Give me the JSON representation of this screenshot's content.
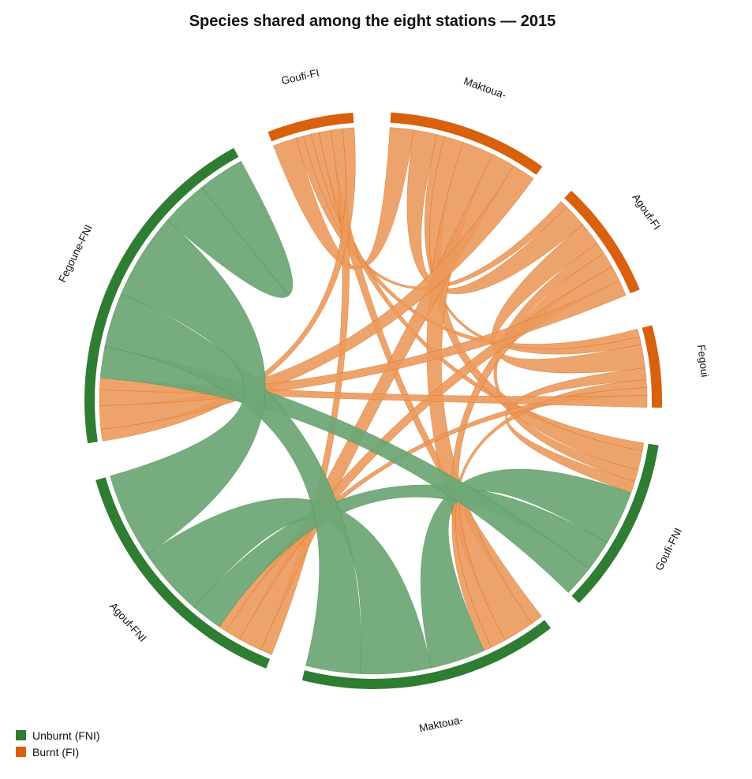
{
  "chart_data": {
    "type": "chord",
    "title": "Species shared among the eight stations — 2015",
    "sectors": [
      {
        "name": "Maktoua-FI",
        "label": "Maktoua-",
        "group": "Burnt (FI)"
      },
      {
        "name": "Agouf-FI",
        "label": "Agouf-FI",
        "group": "Burnt (FI)"
      },
      {
        "name": "Fegoune-FI",
        "label": "Fegoui",
        "group": "Burnt (FI)"
      },
      {
        "name": "Goufi-FNI",
        "label": "Goufi-FNI",
        "group": "Unburnt (FNI)"
      },
      {
        "name": "Maktoua-FNI",
        "label": "Maktoua-",
        "group": "Unburnt (FNI)"
      },
      {
        "name": "Agouf-FNI",
        "label": "Agouf-FNI",
        "group": "Unburnt (FNI)"
      },
      {
        "name": "Fegoune-FNI",
        "label": "Fegoune-FNI",
        "group": "Unburnt (FNI)"
      },
      {
        "name": "Goufi-FI",
        "label": "Goufi-FI",
        "group": "Burnt (FI)"
      }
    ],
    "links": [
      {
        "from": "Goufi-FI",
        "to": "Maktoua-FI",
        "value": 3
      },
      {
        "from": "Goufi-FI",
        "to": "Agouf-FI",
        "value": 1
      },
      {
        "from": "Goufi-FI",
        "to": "Fegoune-FI",
        "value": 1
      },
      {
        "from": "Goufi-FI",
        "to": "Goufi-FNI",
        "value": 1
      },
      {
        "from": "Goufi-FI",
        "to": "Maktoua-FNI",
        "value": 1.5
      },
      {
        "from": "Goufi-FI",
        "to": "Agouf-FNI",
        "value": 1.5
      },
      {
        "from": "Goufi-FI",
        "to": "Fegoune-FNI",
        "value": 1.5
      },
      {
        "from": "Maktoua-FI",
        "to": "Agouf-FI",
        "value": 3
      },
      {
        "from": "Maktoua-FI",
        "to": "Fegoune-FI",
        "value": 1
      },
      {
        "from": "Maktoua-FI",
        "to": "Goufi-FNI",
        "value": 2.5
      },
      {
        "from": "Maktoua-FI",
        "to": "Maktoua-FNI",
        "value": 4
      },
      {
        "from": "Maktoua-FI",
        "to": "Agouf-FNI",
        "value": 3
      },
      {
        "from": "Maktoua-FI",
        "to": "Fegoune-FNI",
        "value": 3
      },
      {
        "from": "Agouf-FI",
        "to": "Fegoune-FI",
        "value": 3
      },
      {
        "from": "Agouf-FI",
        "to": "Goufi-FNI",
        "value": 1.5
      },
      {
        "from": "Agouf-FI",
        "to": "Maktoua-FNI",
        "value": 2
      },
      {
        "from": "Agouf-FI",
        "to": "Agouf-FNI",
        "value": 2
      },
      {
        "from": "Agouf-FI",
        "to": "Fegoune-FNI",
        "value": 2
      },
      {
        "from": "Fegoune-FI",
        "to": "Goufi-FNI",
        "value": 1.5
      },
      {
        "from": "Fegoune-FI",
        "to": "Maktoua-FNI",
        "value": 1
      },
      {
        "from": "Fegoune-FI",
        "to": "Agouf-FNI",
        "value": 1
      },
      {
        "from": "Fegoune-FI",
        "to": "Fegoune-FNI",
        "value": 1.5
      },
      {
        "from": "Goufi-FNI",
        "to": "Maktoua-FNI",
        "value": 7
      },
      {
        "from": "Goufi-FNI",
        "to": "Agouf-FNI",
        "value": 4
      },
      {
        "from": "Goufi-FNI",
        "to": "Fegoune-FNI",
        "value": 4
      },
      {
        "from": "Maktoua-FNI",
        "to": "Agouf-FNI",
        "value": 9
      },
      {
        "from": "Maktoua-FNI",
        "to": "Fegoune-FNI",
        "value": 7
      },
      {
        "from": "Agouf-FNI",
        "to": "Fegoune-FNI",
        "value": 11
      },
      {
        "from": "Fegoune-FNI",
        "to": "Fegoune-FNI",
        "value": 6
      }
    ],
    "legend": {
      "position": "bottom-left",
      "entries": [
        {
          "label": "Unburnt (FNI)",
          "color": "#2e7d32"
        },
        {
          "label": "Burnt (FI)",
          "color": "#d9600c"
        }
      ]
    },
    "colors": {
      "Unburnt (FNI)": {
        "track": "#2e7d32",
        "ribbon": "#6fa877"
      },
      "Burnt (FI)": {
        "track": "#d9600c",
        "ribbon": "#eb9a5c"
      }
    }
  }
}
